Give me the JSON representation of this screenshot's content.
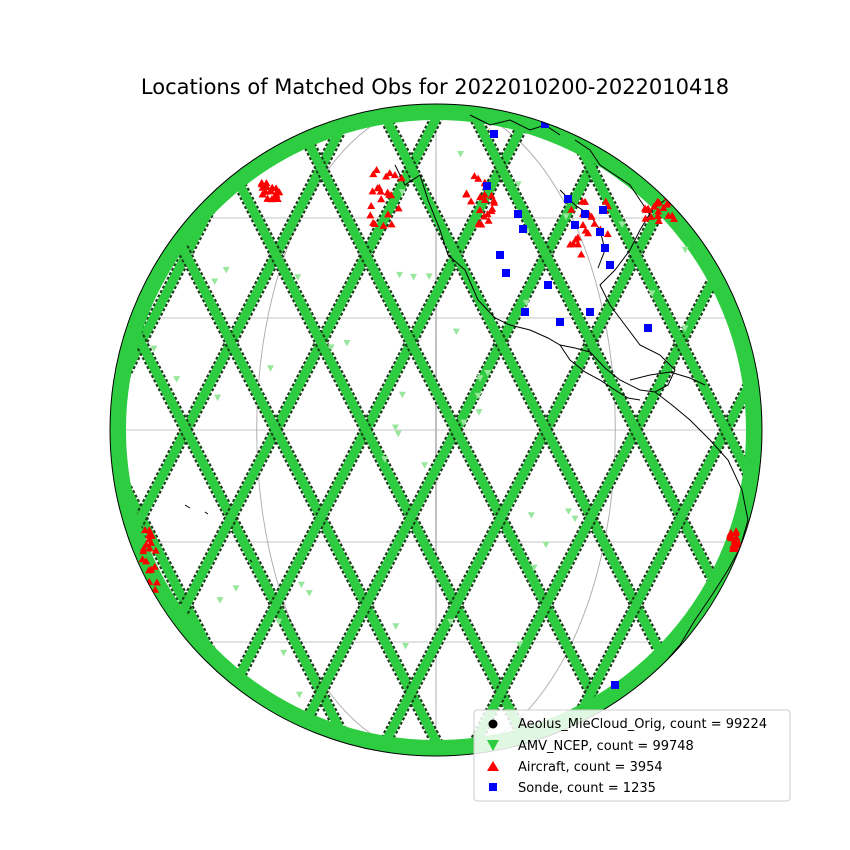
{
  "title": "Locations of Matched Obs for 2022010200-2022010418",
  "colors": {
    "aeolus": "#000000",
    "amv": "#2ecc40",
    "amv_light": "#98e69c",
    "aircraft": "#ff0000",
    "sonde": "#0000ff",
    "coast": "#000000",
    "grid": "#b0b0b0"
  },
  "legend": [
    {
      "key": "aeolus",
      "marker": "circle",
      "label": "Aeolus_MieCloud_Orig, count = 99224"
    },
    {
      "key": "amv",
      "marker": "triangle-down",
      "label": "AMV_NCEP, count = 99748"
    },
    {
      "key": "aircraft",
      "marker": "triangle-up",
      "label": "Aircraft, count = 3954"
    },
    {
      "key": "sonde",
      "marker": "square",
      "label": "Sonde, count = 1235"
    }
  ],
  "chart_data": {
    "type": "scatter",
    "projection": "orthographic",
    "grid": true,
    "legend_placement": "bottom-right",
    "series": [
      {
        "name": "Aeolus_MieCloud_Orig",
        "count": 99224,
        "marker": "circle"
      },
      {
        "name": "AMV_NCEP",
        "count": 99748,
        "marker": "triangle-down"
      },
      {
        "name": "Aircraft",
        "count": 3954,
        "marker": "triangle-up"
      },
      {
        "name": "Sonde",
        "count": 1235,
        "marker": "square"
      }
    ]
  }
}
